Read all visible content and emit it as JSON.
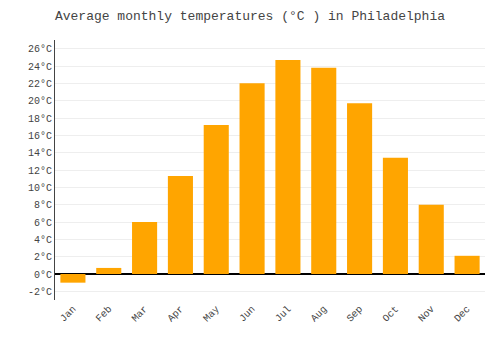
{
  "chart_data": {
    "type": "bar",
    "title": "Average monthly temperatures (°C ) in Philadelphia",
    "categories": [
      "Jan",
      "Feb",
      "Mar",
      "Apr",
      "May",
      "Jun",
      "Jul",
      "Aug",
      "Sep",
      "Oct",
      "Nov",
      "Dec"
    ],
    "values": [
      -1.0,
      0.7,
      6.0,
      11.3,
      17.2,
      22.0,
      24.7,
      23.8,
      19.7,
      13.4,
      8.0,
      2.1
    ],
    "color": "#FFA500",
    "ylim": [
      -3,
      27
    ],
    "yticks": [
      {
        "value": -2,
        "label": "-2°C"
      },
      {
        "value": 0,
        "label": "0°C"
      },
      {
        "value": 2,
        "label": "2°C"
      },
      {
        "value": 4,
        "label": "4°C"
      },
      {
        "value": 6,
        "label": "6°C"
      },
      {
        "value": 8,
        "label": "8°C"
      },
      {
        "value": 10,
        "label": "10°C"
      },
      {
        "value": 12,
        "label": "12°C"
      },
      {
        "value": 14,
        "label": "14°C"
      },
      {
        "value": 16,
        "label": "16°C"
      },
      {
        "value": 18,
        "label": "18°C"
      },
      {
        "value": 20,
        "label": "20°C"
      },
      {
        "value": 22,
        "label": "22°C"
      },
      {
        "value": 24,
        "label": "24°C"
      },
      {
        "value": 26,
        "label": "26°C"
      }
    ],
    "grid": true
  }
}
